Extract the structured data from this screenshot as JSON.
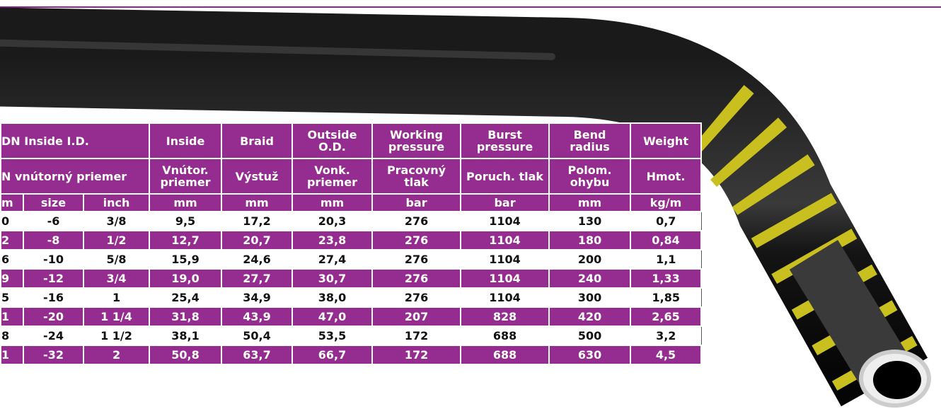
{
  "table": {
    "header_top": [
      "DN Inside I.D.",
      "Inside",
      "Braid",
      "Outside O.D.",
      "Working pressure",
      "Burst pressure",
      "Bend radius",
      "Weight"
    ],
    "header_local": [
      "N vnútorný priemer",
      "Vnútor. priemer",
      "Výstuž",
      "Vonk. priemer",
      "Pracovný tlak",
      "Poruch. tlak",
      "Polom. ohybu",
      "Hmot."
    ],
    "units": [
      "m",
      "size",
      "inch",
      "mm",
      "mm",
      "mm",
      "bar",
      "bar",
      "mm",
      "kg/m"
    ],
    "rows": [
      [
        "0",
        "-6",
        "3/8",
        "9,5",
        "17,2",
        "20,3",
        "276",
        "1104",
        "130",
        "0,7"
      ],
      [
        "2",
        "-8",
        "1/2",
        "12,7",
        "20,7",
        "23,8",
        "276",
        "1104",
        "180",
        "0,84"
      ],
      [
        "6",
        "-10",
        "5/8",
        "15,9",
        "24,6",
        "27,4",
        "276",
        "1104",
        "200",
        "1,1"
      ],
      [
        "9",
        "-12",
        "3/4",
        "19,0",
        "27,7",
        "30,7",
        "276",
        "1104",
        "240",
        "1,33"
      ],
      [
        "5",
        "-16",
        "1",
        "25,4",
        "34,9",
        "38,0",
        "276",
        "1104",
        "300",
        "1,85"
      ],
      [
        "1",
        "-20",
        "1 1/4",
        "31,8",
        "43,9",
        "47,0",
        "207",
        "828",
        "420",
        "2,65"
      ],
      [
        "8",
        "-24",
        "1 1/2",
        "38,1",
        "50,4",
        "53,5",
        "172",
        "688",
        "500",
        "3,2"
      ],
      [
        "1",
        "-32",
        "2",
        "50,8",
        "63,7",
        "66,7",
        "172",
        "688",
        "630",
        "4,5"
      ]
    ]
  }
}
